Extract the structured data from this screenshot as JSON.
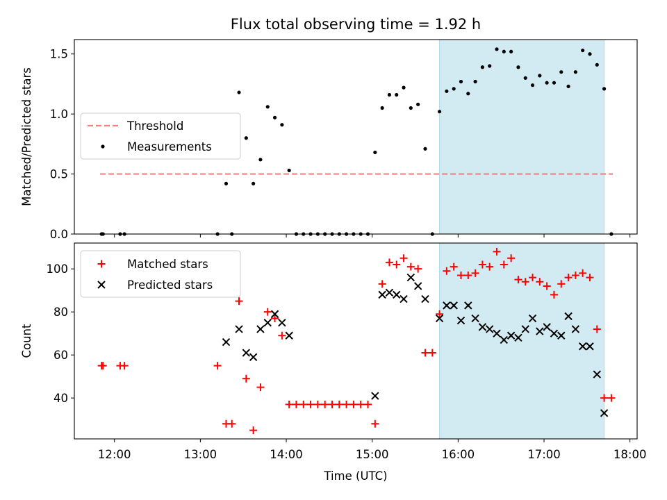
{
  "title": "Flux total observing time = 1.92 h",
  "chart_data": [
    {
      "type": "scatter",
      "ylabel": "Matched/Predicted stars",
      "ylim": [
        0,
        1.62
      ],
      "yticks": [
        "0.0",
        "0.5",
        "1.0",
        "1.5"
      ],
      "ytick_values": [
        0,
        0.5,
        1.0,
        1.5
      ],
      "xlim": [
        "11:32",
        "18:05"
      ],
      "legend_position": "center-left",
      "threshold": {
        "name": "Threshold",
        "value": 0.5,
        "x_start": "11:50",
        "x_end": "17:48",
        "color": "#f08080"
      },
      "shaded_region": {
        "x_start": "15:47",
        "x_end": "17:42",
        "color": "#add8e6"
      },
      "series": [
        {
          "name": "Measurements",
          "color": "#000000",
          "x": [
            "11:51",
            "11:52",
            "12:04",
            "12:07",
            "13:12",
            "13:18",
            "13:22",
            "13:27",
            "13:32",
            "13:37",
            "13:42",
            "13:47",
            "13:52",
            "13:57",
            "14:02",
            "14:07",
            "14:12",
            "14:17",
            "14:22",
            "14:27",
            "14:32",
            "14:37",
            "14:42",
            "14:47",
            "14:52",
            "14:57",
            "15:02",
            "15:07",
            "15:12",
            "15:17",
            "15:22",
            "15:27",
            "15:32",
            "15:37",
            "15:42",
            "15:47",
            "15:52",
            "15:57",
            "16:02",
            "16:07",
            "16:12",
            "16:17",
            "16:22",
            "16:27",
            "16:32",
            "16:37",
            "16:42",
            "16:47",
            "16:52",
            "16:57",
            "17:02",
            "17:07",
            "17:12",
            "17:17",
            "17:22",
            "17:27",
            "17:32",
            "17:37",
            "17:42",
            "17:47"
          ],
          "y": [
            0,
            0,
            0,
            0,
            0,
            0.42,
            0,
            1.18,
            0.8,
            0.42,
            0.62,
            1.06,
            0.97,
            0.91,
            0.53,
            0,
            0,
            0,
            0,
            0,
            0,
            0,
            0,
            0,
            0,
            0,
            0.68,
            1.05,
            1.16,
            1.16,
            1.22,
            1.05,
            1.08,
            0.71,
            0,
            1.02,
            1.19,
            1.21,
            1.27,
            1.17,
            1.27,
            1.39,
            1.4,
            1.54,
            1.52,
            1.52,
            1.39,
            1.3,
            1.24,
            1.32,
            1.26,
            1.26,
            1.35,
            1.23,
            1.35,
            1.53,
            1.5,
            1.41,
            1.21,
            0
          ]
        }
      ]
    },
    {
      "type": "scatter",
      "xlabel": "Time (UTC)",
      "ylabel": "Count",
      "ylim": [
        21,
        112
      ],
      "yticks": [
        "40",
        "60",
        "80",
        "100"
      ],
      "ytick_values": [
        40,
        60,
        80,
        100
      ],
      "xticks": [
        "12:00",
        "13:00",
        "14:00",
        "15:00",
        "16:00",
        "17:00",
        "18:00"
      ],
      "xlim": [
        "11:32",
        "18:05"
      ],
      "legend_position": "top-left",
      "shaded_region": {
        "x_start": "15:47",
        "x_end": "17:42",
        "color": "#add8e6"
      },
      "series": [
        {
          "name": "Matched stars",
          "marker": "+",
          "color": "#ff0000",
          "x": [
            "11:51",
            "11:52",
            "12:04",
            "12:07",
            "13:12",
            "13:18",
            "13:22",
            "13:27",
            "13:32",
            "13:37",
            "13:42",
            "13:47",
            "13:52",
            "13:57",
            "14:02",
            "14:07",
            "14:12",
            "14:17",
            "14:22",
            "14:27",
            "14:32",
            "14:37",
            "14:42",
            "14:47",
            "14:52",
            "14:57",
            "15:02",
            "15:07",
            "15:12",
            "15:17",
            "15:22",
            "15:27",
            "15:32",
            "15:37",
            "15:42",
            "15:47",
            "15:52",
            "15:57",
            "16:02",
            "16:07",
            "16:12",
            "16:17",
            "16:22",
            "16:27",
            "16:32",
            "16:37",
            "16:42",
            "16:47",
            "16:52",
            "16:57",
            "17:02",
            "17:07",
            "17:12",
            "17:17",
            "17:22",
            "17:27",
            "17:32",
            "17:37",
            "17:42",
            "17:47"
          ],
          "y": [
            55,
            55,
            55,
            55,
            55,
            28,
            28,
            85,
            49,
            25,
            45,
            80,
            77,
            69,
            37,
            37,
            37,
            37,
            37,
            37,
            37,
            37,
            37,
            37,
            37,
            37,
            28,
            93,
            103,
            102,
            105,
            101,
            100,
            61,
            61,
            79,
            99,
            101,
            97,
            97,
            98,
            102,
            101,
            108,
            102,
            105,
            95,
            94,
            96,
            94,
            92,
            88,
            93,
            96,
            97,
            98,
            96,
            72,
            40,
            40
          ]
        },
        {
          "name": "Predicted stars",
          "marker": "x",
          "color": "#000000",
          "x": [
            "13:18",
            "13:27",
            "13:32",
            "13:37",
            "13:42",
            "13:47",
            "13:52",
            "13:57",
            "14:02",
            "15:02",
            "15:07",
            "15:12",
            "15:17",
            "15:22",
            "15:27",
            "15:32",
            "15:37",
            "15:47",
            "15:52",
            "15:57",
            "16:02",
            "16:07",
            "16:12",
            "16:17",
            "16:22",
            "16:27",
            "16:32",
            "16:37",
            "16:42",
            "16:47",
            "16:52",
            "16:57",
            "17:02",
            "17:07",
            "17:12",
            "17:17",
            "17:22",
            "17:27",
            "17:32",
            "17:37",
            "17:42"
          ],
          "y": [
            66,
            72,
            61,
            59,
            72,
            75,
            79,
            75,
            69,
            41,
            88,
            89,
            88,
            86,
            96,
            92,
            86,
            77,
            83,
            83,
            76,
            83,
            77,
            73,
            72,
            70,
            67,
            69,
            68,
            72,
            77,
            71,
            73,
            70,
            69,
            78,
            72,
            64,
            64,
            51,
            33
          ]
        }
      ]
    }
  ]
}
